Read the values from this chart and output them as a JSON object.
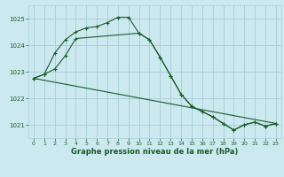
{
  "background_color": "#cce9f0",
  "grid_color": "#aad0da",
  "line_color": "#1a5c2a",
  "ylabel_ticks": [
    1021,
    1022,
    1023,
    1024,
    1025
  ],
  "xticks": [
    0,
    1,
    2,
    3,
    4,
    5,
    6,
    7,
    8,
    9,
    10,
    11,
    12,
    13,
    14,
    15,
    16,
    17,
    18,
    19,
    20,
    21,
    22,
    23
  ],
  "xlabel": "Graphe pression niveau de la mer (hPa)",
  "ylim": [
    1020.5,
    1025.5
  ],
  "xlim": [
    -0.5,
    23.5
  ],
  "line1": {
    "x": [
      0,
      1,
      2,
      3,
      4,
      5,
      6,
      7,
      8,
      9,
      10,
      11,
      12,
      13,
      14,
      15,
      16,
      17,
      18,
      19,
      20,
      21,
      22,
      23
    ],
    "y": [
      1022.75,
      1022.9,
      1023.7,
      1024.2,
      1024.5,
      1024.65,
      1024.7,
      1024.85,
      1025.05,
      1025.05,
      1024.45,
      1024.2,
      1023.55,
      1022.85,
      1022.15,
      1021.7,
      1021.5,
      1021.3,
      1021.05,
      1020.8,
      1021.0,
      1021.1,
      1020.95,
      1021.05
    ]
  },
  "line2": {
    "x": [
      0,
      1,
      2,
      3,
      4,
      10,
      11,
      12,
      13,
      14,
      15,
      16,
      17,
      18,
      19,
      20,
      21,
      22,
      23
    ],
    "y": [
      1022.75,
      1022.9,
      1023.1,
      1023.6,
      1024.25,
      1024.45,
      1024.2,
      1023.55,
      1022.85,
      1022.15,
      1021.7,
      1021.5,
      1021.3,
      1021.05,
      1020.8,
      1021.0,
      1021.1,
      1020.95,
      1021.05
    ]
  },
  "line3": {
    "x": [
      0,
      23
    ],
    "y": [
      1022.75,
      1021.05
    ]
  }
}
